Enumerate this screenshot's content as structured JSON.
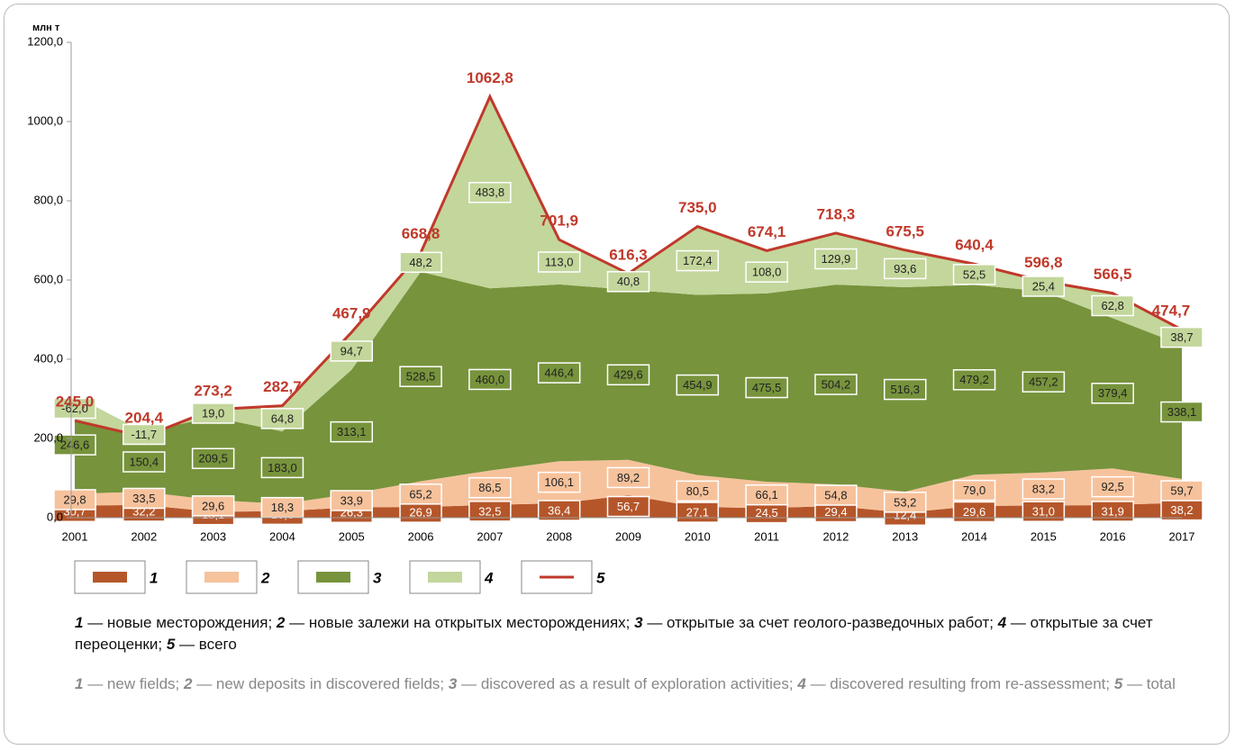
{
  "chart_data": {
    "type": "stacked_area",
    "y_unit": "млн т",
    "x": [
      "2001",
      "2002",
      "2003",
      "2004",
      "2005",
      "2006",
      "2007",
      "2008",
      "2009",
      "2010",
      "2011",
      "2012",
      "2013",
      "2014",
      "2015",
      "2016",
      "2017"
    ],
    "ylim": [
      0,
      1200
    ],
    "yticks": [
      {
        "value": 0,
        "label": "0,0"
      },
      {
        "value": 200,
        "label": "200,0"
      },
      {
        "value": 400,
        "label": "400,0"
      },
      {
        "value": 600,
        "label": "600,0"
      },
      {
        "value": 800,
        "label": "800,0"
      },
      {
        "value": 1000,
        "label": "1000,0"
      },
      {
        "value": 1200,
        "label": "1200,0"
      }
    ],
    "series": [
      {
        "name": "1",
        "color": "#b5562a",
        "values": [
          30.7,
          32.2,
          15.1,
          16.6,
          26.3,
          26.9,
          32.5,
          36.4,
          56.7,
          27.1,
          24.5,
          29.4,
          12.4,
          29.6,
          31.0,
          31.9,
          38.2
        ],
        "value_labels": [
          "30,7",
          "32,2",
          "15,1",
          "16,6",
          "26,3",
          "26,9",
          "32,5",
          "36,4",
          "56,7",
          "27,1",
          "24,5",
          "29,4",
          "12,4",
          "29,6",
          "31,0",
          "31,9",
          "38,2"
        ]
      },
      {
        "name": "2",
        "color": "#f6c29c",
        "values": [
          29.8,
          33.5,
          29.6,
          18.3,
          33.9,
          65.2,
          86.5,
          106.1,
          89.2,
          80.5,
          66.1,
          54.8,
          53.2,
          79.0,
          83.2,
          92.5,
          59.7
        ],
        "value_labels": [
          "29,8",
          "33,5",
          "29,6",
          "18,3",
          "33,9",
          "65,2",
          "86,5",
          "106,1",
          "89,2",
          "80,5",
          "66,1",
          "54,8",
          "53,2",
          "79,0",
          "83,2",
          "92,5",
          "59,7"
        ]
      },
      {
        "name": "3",
        "color": "#77933c",
        "values": [
          246.6,
          150.4,
          209.5,
          183.0,
          313.1,
          528.5,
          460.0,
          446.4,
          429.6,
          454.9,
          475.5,
          504.2,
          516.3,
          479.2,
          457.2,
          379.4,
          338.1
        ],
        "value_labels": [
          "246,6",
          "150,4",
          "209,5",
          "183,0",
          "313,1",
          "528,5",
          "460,0",
          "446,4",
          "429,6",
          "454,9",
          "475,5",
          "504,2",
          "516,3",
          "479,2",
          "457,2",
          "379,4",
          "338,1"
        ]
      },
      {
        "name": "4",
        "color": "#c3d69b",
        "values": [
          -62.0,
          -11.7,
          19.0,
          64.8,
          94.7,
          48.2,
          483.8,
          113.0,
          40.8,
          172.4,
          108.0,
          129.9,
          93.6,
          52.5,
          25.4,
          62.8,
          38.7
        ],
        "value_labels": [
          "-62,0",
          "-11,7",
          "19,0",
          "64,8",
          "94,7",
          "48,2",
          "483,8",
          "113,0",
          "40,8",
          "172,4",
          "108,0",
          "129,9",
          "93,6",
          "52,5",
          "25,4",
          "62,8",
          "38,7"
        ]
      },
      {
        "name": "5",
        "color": "#c0392b",
        "kind": "line",
        "values": [
          245.0,
          204.4,
          273.2,
          282.7,
          467.9,
          668.8,
          1062.8,
          701.9,
          616.3,
          735.0,
          674.1,
          718.3,
          675.5,
          640.4,
          596.8,
          566.5,
          474.7
        ],
        "value_labels": [
          "245,0",
          "204,4",
          "273,2",
          "282,7",
          "467,9",
          "668,8",
          "1062,8",
          "701,9",
          "616,3",
          "735,0",
          "674,1",
          "718,3",
          "675,5",
          "640,4",
          "596,8",
          "566,5",
          "474,7"
        ]
      }
    ],
    "caption_ru": [
      "— новые месторождения;",
      "— новые залежи на открытых месторождениях;",
      "— открытые за счет геолого-разведочных работ;",
      "— открытые за счет переоценки;",
      "— всего"
    ],
    "caption_en": [
      "— new fields;",
      "— new deposits in discovered fields;",
      "— discovered as a result of exploration activities;",
      "— discovered resulting from re-assessment;",
      "— total"
    ]
  }
}
